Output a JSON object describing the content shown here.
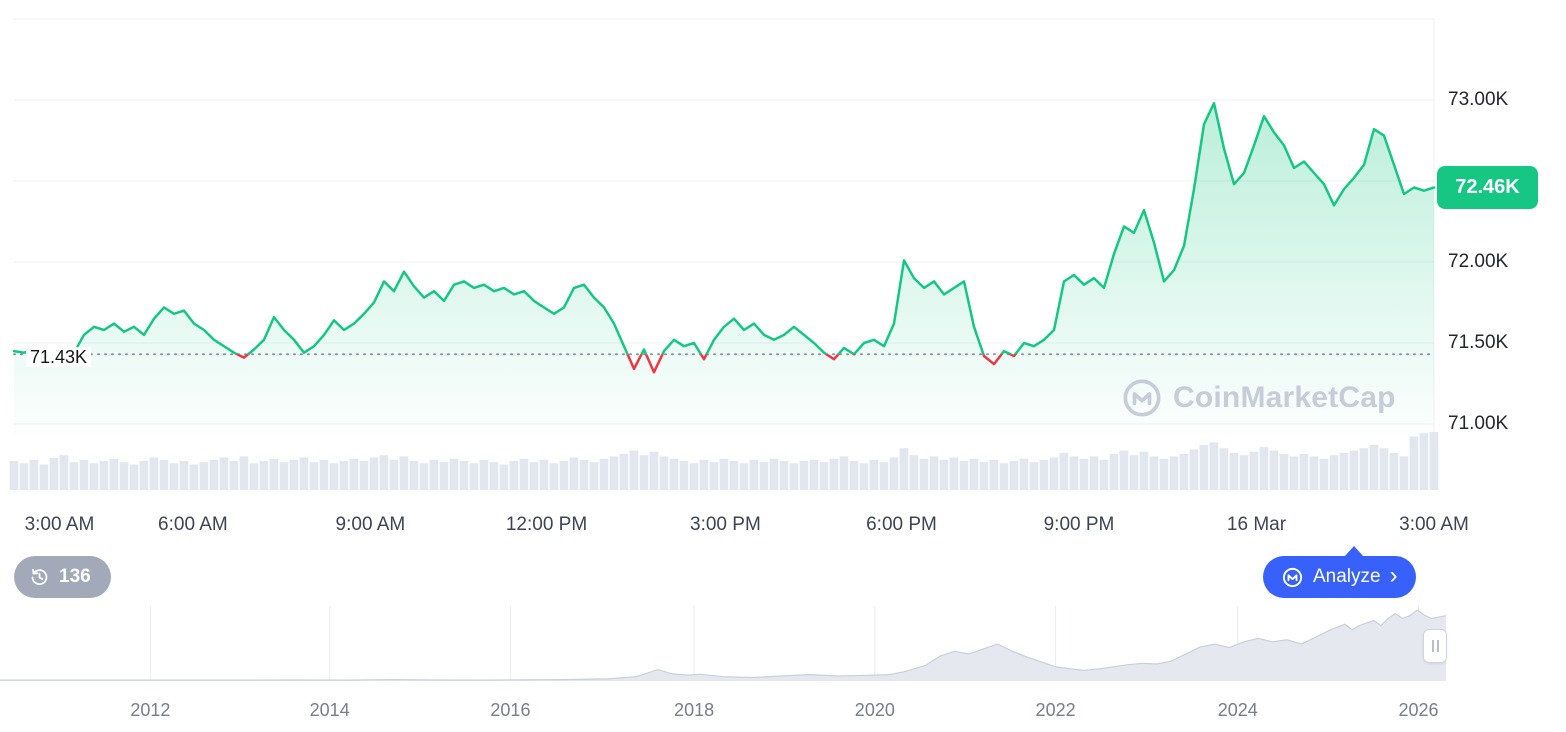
{
  "app": {
    "name": "CoinMarketCap price chart"
  },
  "watermark": {
    "text": "CoinMarketCap"
  },
  "history_badge": {
    "count": "136"
  },
  "analyze_button": {
    "label": "Analyze",
    "chevron": "›"
  },
  "colors": {
    "green": "#16c784",
    "red": "#ea3943",
    "blue": "#3861fb",
    "grid": "#eef1f6",
    "volume_bar": "#e2e6ee",
    "nav_fill": "#e5e8ef",
    "nav_stroke": "#c9d0dc",
    "dotted_line": "#8a94a6"
  },
  "chart_data": [
    {
      "name": "btc-price-intraday",
      "type": "line",
      "unit": "USD (K)",
      "ylim": [
        70.9,
        73.6
      ],
      "y_ticks": [
        {
          "label": "73.00K",
          "value": 73.0
        },
        {
          "label": "72.00K",
          "value": 72.0
        },
        {
          "label": "71.50K",
          "value": 71.5
        },
        {
          "label": "71.00K",
          "value": 71.0
        }
      ],
      "gridlines": [
        73.5,
        73.0,
        72.5,
        72.0,
        71.5,
        71.0
      ],
      "x_ticks": [
        {
          "label": "3:00 AM",
          "f": 0.032
        },
        {
          "label": "6:00 AM",
          "f": 0.126
        },
        {
          "label": "9:00 AM",
          "f": 0.251
        },
        {
          "label": "12:00 PM",
          "f": 0.375
        },
        {
          "label": "3:00 PM",
          "f": 0.501
        },
        {
          "label": "6:00 PM",
          "f": 0.625
        },
        {
          "label": "9:00 PM",
          "f": 0.75
        },
        {
          "label": "16 Mar",
          "f": 0.875
        },
        {
          "label": "3:00 AM",
          "f": 1.0
        }
      ],
      "reference_line": {
        "label": "71.43K",
        "value": 71.43
      },
      "last_price": {
        "label": "72.46K",
        "value": 72.46
      },
      "line_color_above_ref": "#16c784",
      "line_color_below_ref": "#ea3943",
      "prices": [
        71.45,
        71.44,
        71.46,
        71.43,
        71.4,
        71.38,
        71.44,
        71.55,
        71.6,
        71.58,
        71.62,
        71.57,
        71.6,
        71.55,
        71.65,
        71.72,
        71.68,
        71.7,
        71.62,
        71.58,
        71.52,
        71.48,
        71.44,
        71.41,
        71.46,
        71.52,
        71.66,
        71.58,
        71.52,
        71.44,
        71.48,
        71.55,
        71.64,
        71.58,
        71.62,
        71.68,
        71.75,
        71.88,
        71.82,
        71.94,
        71.85,
        71.78,
        71.82,
        71.76,
        71.86,
        71.88,
        71.84,
        71.86,
        71.82,
        71.84,
        71.8,
        71.82,
        71.76,
        71.72,
        71.68,
        71.72,
        71.84,
        71.86,
        71.78,
        71.72,
        71.62,
        71.48,
        71.34,
        71.46,
        71.32,
        71.45,
        71.52,
        71.48,
        71.5,
        71.4,
        71.52,
        71.6,
        71.65,
        71.58,
        71.62,
        71.55,
        71.52,
        71.55,
        71.6,
        71.55,
        71.5,
        71.44,
        71.4,
        71.47,
        71.43,
        71.5,
        71.52,
        71.48,
        71.62,
        72.01,
        71.9,
        71.84,
        71.88,
        71.8,
        71.84,
        71.88,
        71.6,
        71.42,
        71.37,
        71.45,
        71.42,
        71.5,
        71.48,
        71.52,
        71.58,
        71.88,
        71.92,
        71.86,
        71.9,
        71.84,
        72.05,
        72.22,
        72.18,
        72.32,
        72.12,
        71.88,
        71.95,
        72.1,
        72.45,
        72.85,
        72.98,
        72.7,
        72.48,
        72.55,
        72.72,
        72.9,
        72.8,
        72.72,
        72.58,
        72.62,
        72.55,
        72.48,
        72.35,
        72.45,
        72.52,
        72.6,
        72.82,
        72.78,
        72.6,
        72.42,
        72.46,
        72.44,
        72.46
      ],
      "volumes": [
        0.5,
        0.46,
        0.52,
        0.44,
        0.55,
        0.6,
        0.48,
        0.52,
        0.46,
        0.5,
        0.54,
        0.48,
        0.44,
        0.5,
        0.56,
        0.52,
        0.46,
        0.5,
        0.44,
        0.48,
        0.52,
        0.56,
        0.5,
        0.58,
        0.46,
        0.5,
        0.54,
        0.48,
        0.52,
        0.56,
        0.48,
        0.52,
        0.46,
        0.5,
        0.54,
        0.5,
        0.56,
        0.6,
        0.52,
        0.58,
        0.5,
        0.46,
        0.52,
        0.48,
        0.54,
        0.5,
        0.46,
        0.52,
        0.48,
        0.44,
        0.5,
        0.54,
        0.48,
        0.52,
        0.46,
        0.5,
        0.56,
        0.52,
        0.48,
        0.54,
        0.58,
        0.62,
        0.68,
        0.6,
        0.66,
        0.58,
        0.54,
        0.5,
        0.46,
        0.52,
        0.48,
        0.54,
        0.5,
        0.46,
        0.52,
        0.48,
        0.54,
        0.5,
        0.46,
        0.5,
        0.52,
        0.48,
        0.54,
        0.58,
        0.5,
        0.46,
        0.52,
        0.48,
        0.56,
        0.72,
        0.6,
        0.54,
        0.58,
        0.52,
        0.56,
        0.5,
        0.54,
        0.48,
        0.52,
        0.46,
        0.5,
        0.54,
        0.48,
        0.52,
        0.56,
        0.64,
        0.58,
        0.54,
        0.58,
        0.52,
        0.62,
        0.68,
        0.6,
        0.66,
        0.58,
        0.54,
        0.58,
        0.62,
        0.7,
        0.78,
        0.82,
        0.72,
        0.64,
        0.6,
        0.66,
        0.74,
        0.68,
        0.62,
        0.58,
        0.62,
        0.58,
        0.54,
        0.6,
        0.64,
        0.68,
        0.72,
        0.78,
        0.72,
        0.64,
        0.58,
        0.92,
        0.98,
        1.0
      ]
    },
    {
      "name": "range-navigator-all-time",
      "type": "area",
      "x_ticks": [
        {
          "label": "2012",
          "f": 0.104
        },
        {
          "label": "2014",
          "f": 0.228
        },
        {
          "label": "2016",
          "f": 0.353
        },
        {
          "label": "2018",
          "f": 0.48
        },
        {
          "label": "2020",
          "f": 0.605
        },
        {
          "label": "2022",
          "f": 0.73
        },
        {
          "label": "2024",
          "f": 0.856
        },
        {
          "label": "2026",
          "f": 0.981
        }
      ],
      "points": [
        [
          0,
          0.012
        ],
        [
          0.04,
          0.012
        ],
        [
          0.08,
          0.012
        ],
        [
          0.12,
          0.012
        ],
        [
          0.16,
          0.012
        ],
        [
          0.2,
          0.014
        ],
        [
          0.24,
          0.012
        ],
        [
          0.27,
          0.02
        ],
        [
          0.3,
          0.014
        ],
        [
          0.33,
          0.013
        ],
        [
          0.36,
          0.015
        ],
        [
          0.39,
          0.02
        ],
        [
          0.42,
          0.03
        ],
        [
          0.44,
          0.06
        ],
        [
          0.455,
          0.16
        ],
        [
          0.465,
          0.1
        ],
        [
          0.475,
          0.085
        ],
        [
          0.485,
          0.095
        ],
        [
          0.5,
          0.06
        ],
        [
          0.52,
          0.05
        ],
        [
          0.54,
          0.07
        ],
        [
          0.56,
          0.09
        ],
        [
          0.58,
          0.07
        ],
        [
          0.6,
          0.08
        ],
        [
          0.615,
          0.09
        ],
        [
          0.625,
          0.13
        ],
        [
          0.64,
          0.22
        ],
        [
          0.65,
          0.35
        ],
        [
          0.66,
          0.42
        ],
        [
          0.67,
          0.38
        ],
        [
          0.68,
          0.45
        ],
        [
          0.69,
          0.52
        ],
        [
          0.7,
          0.42
        ],
        [
          0.71,
          0.34
        ],
        [
          0.72,
          0.27
        ],
        [
          0.73,
          0.2
        ],
        [
          0.74,
          0.17
        ],
        [
          0.75,
          0.15
        ],
        [
          0.76,
          0.17
        ],
        [
          0.77,
          0.2
        ],
        [
          0.78,
          0.23
        ],
        [
          0.79,
          0.25
        ],
        [
          0.8,
          0.24
        ],
        [
          0.81,
          0.28
        ],
        [
          0.82,
          0.38
        ],
        [
          0.83,
          0.48
        ],
        [
          0.84,
          0.52
        ],
        [
          0.85,
          0.47
        ],
        [
          0.86,
          0.55
        ],
        [
          0.87,
          0.6
        ],
        [
          0.88,
          0.55
        ],
        [
          0.89,
          0.58
        ],
        [
          0.9,
          0.52
        ],
        [
          0.91,
          0.62
        ],
        [
          0.92,
          0.72
        ],
        [
          0.93,
          0.8
        ],
        [
          0.935,
          0.72
        ],
        [
          0.94,
          0.78
        ],
        [
          0.95,
          0.85
        ],
        [
          0.955,
          0.78
        ],
        [
          0.96,
          0.88
        ],
        [
          0.965,
          0.95
        ],
        [
          0.97,
          0.88
        ],
        [
          0.975,
          0.92
        ],
        [
          0.98,
          1.0
        ],
        [
          0.985,
          0.93
        ],
        [
          0.99,
          0.88
        ],
        [
          1.0,
          0.92
        ]
      ]
    }
  ]
}
